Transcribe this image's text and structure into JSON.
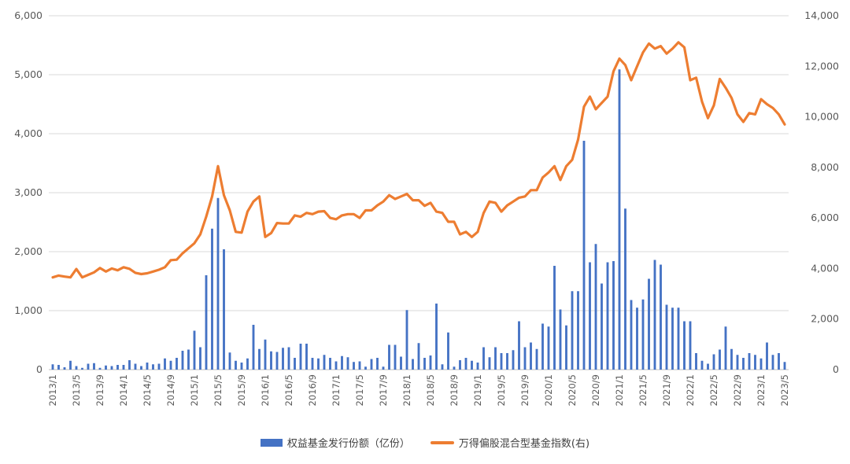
{
  "chart_data": {
    "type": "bar+line",
    "title": "",
    "left_axis": {
      "ylim": [
        0,
        6000
      ],
      "ticks": [
        "0",
        "1,000",
        "2,000",
        "3,000",
        "4,000",
        "5,000",
        "6,000"
      ]
    },
    "right_axis": {
      "ylim": [
        0,
        14000
      ],
      "ticks": [
        "0",
        "2,000",
        "4,000",
        "6,000",
        "8,000",
        "10,000",
        "12,000",
        "14,000"
      ]
    },
    "x_tick_labels": [
      "2013/1",
      "2013/5",
      "2013/9",
      "2014/1",
      "2014/5",
      "2014/9",
      "2015/1",
      "2015/5",
      "2015/9",
      "2016/1",
      "2016/5",
      "2016/9",
      "2017/1",
      "2017/5",
      "2017/9",
      "2018/1",
      "2018/5",
      "2018/9",
      "2019/1",
      "2019/5",
      "2019/9",
      "2020/1",
      "2020/5",
      "2020/9",
      "2021/1",
      "2021/5",
      "2021/9",
      "2022/1",
      "2022/5",
      "2022/9",
      "2023/1",
      "2023/5"
    ],
    "x_start": "2013/1",
    "x_end": "2023/5",
    "grid": "horizontal",
    "legend_position": "bottom",
    "series": [
      {
        "name": "权益基金发行份额（亿份）",
        "type": "bar",
        "axis": "left",
        "color": "#4472c4",
        "values": [
          90,
          80,
          40,
          150,
          60,
          30,
          100,
          110,
          30,
          70,
          60,
          80,
          80,
          160,
          100,
          60,
          120,
          90,
          100,
          190,
          150,
          200,
          320,
          340,
          660,
          380,
          1600,
          2390,
          2910,
          2040,
          290,
          150,
          120,
          190,
          760,
          350,
          510,
          310,
          300,
          370,
          380,
          200,
          440,
          440,
          200,
          190,
          250,
          200,
          140,
          230,
          210,
          130,
          140,
          50,
          180,
          200,
          50,
          420,
          420,
          220,
          1010,
          180,
          450,
          200,
          240,
          1120,
          90,
          630,
          50,
          160,
          200,
          150,
          120,
          380,
          210,
          380,
          280,
          280,
          330,
          820,
          380,
          460,
          350,
          780,
          730,
          1760,
          1020,
          750,
          1330,
          1330,
          3880,
          1820,
          2130,
          1460,
          1820,
          1840,
          5090,
          2730,
          1180,
          1050,
          1190,
          1540,
          1860,
          1780,
          1100,
          1050,
          1050,
          820,
          820,
          280,
          150,
          100,
          260,
          340,
          730,
          350,
          250,
          200,
          280,
          250,
          190,
          460,
          250,
          280,
          130
        ]
      },
      {
        "name": "万得偏股混合型基金指数(右)",
        "type": "line",
        "axis": "right",
        "color": "#ed7d31",
        "values": [
          3650,
          3720,
          3680,
          3650,
          3980,
          3650,
          3750,
          3850,
          4020,
          3880,
          4000,
          3930,
          4050,
          3990,
          3830,
          3780,
          3810,
          3880,
          3950,
          4050,
          4330,
          4350,
          4600,
          4800,
          5000,
          5350,
          6050,
          6850,
          8050,
          6900,
          6300,
          5450,
          5420,
          6250,
          6650,
          6850,
          5250,
          5400,
          5800,
          5780,
          5780,
          6100,
          6050,
          6200,
          6150,
          6250,
          6270,
          6000,
          5950,
          6100,
          6150,
          6150,
          6000,
          6300,
          6300,
          6500,
          6650,
          6900,
          6750,
          6850,
          6950,
          6700,
          6700,
          6480,
          6600,
          6250,
          6200,
          5850,
          5850,
          5350,
          5450,
          5250,
          5450,
          6200,
          6650,
          6600,
          6250,
          6500,
          6650,
          6800,
          6850,
          7100,
          7100,
          7600,
          7800,
          8050,
          7500,
          8050,
          8300,
          9100,
          10400,
          10800,
          10300,
          10550,
          10800,
          11800,
          12300,
          12050,
          11450,
          12000,
          12550,
          12900,
          12700,
          12800,
          12500,
          12700,
          12950,
          12750,
          11450,
          11550,
          10600,
          9950,
          10450,
          11500,
          11150,
          10750,
          10100,
          9800,
          10150,
          10100,
          10700,
          10500,
          10350,
          10100,
          9700
        ]
      }
    ]
  }
}
